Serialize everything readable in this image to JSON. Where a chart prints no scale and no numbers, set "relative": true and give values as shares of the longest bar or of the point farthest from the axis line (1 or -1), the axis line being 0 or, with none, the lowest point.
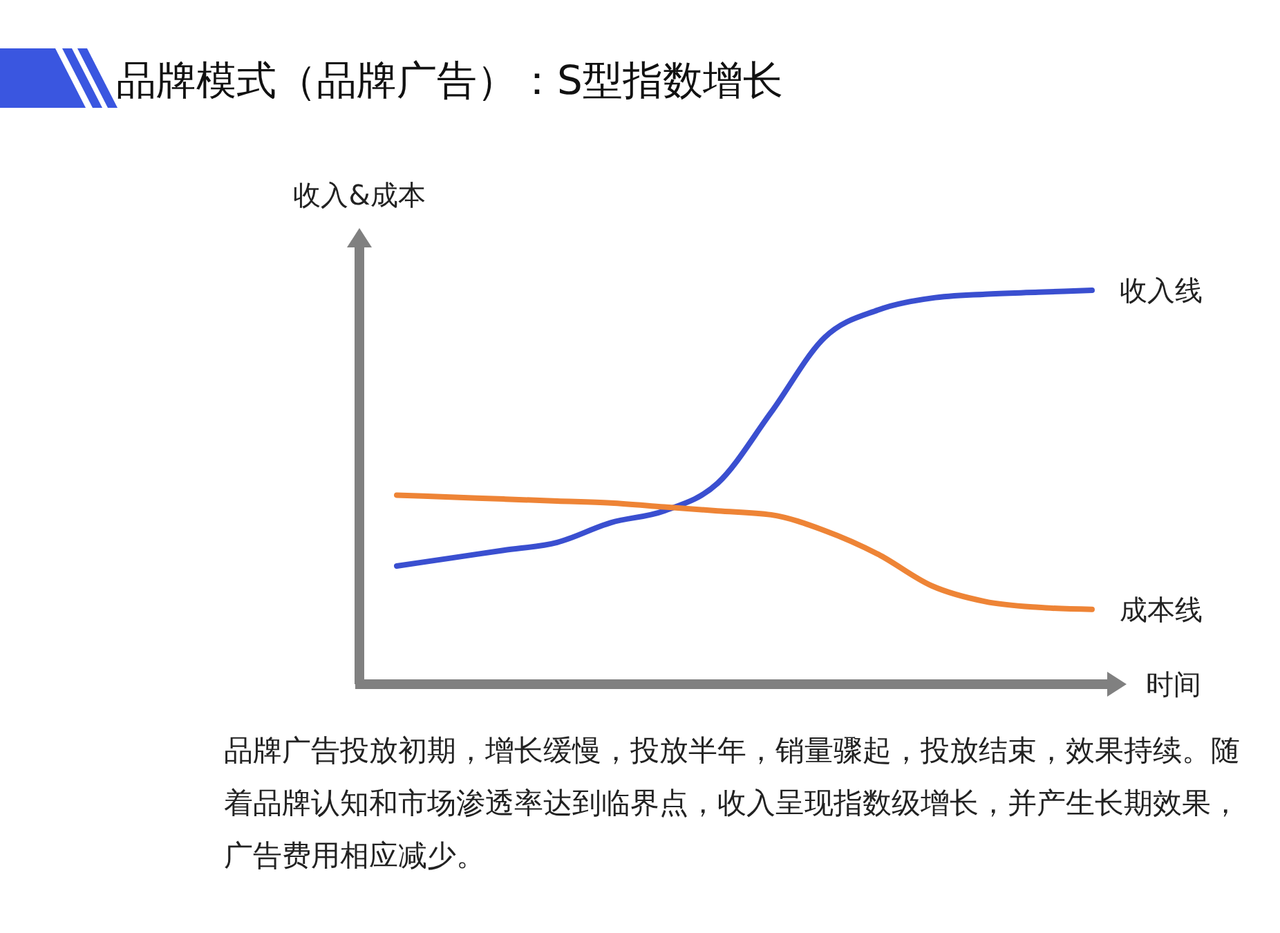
{
  "chart_data": {
    "type": "line",
    "title": "品牌模式（品牌广告）：S型指数增长",
    "xlabel": "时间",
    "ylabel": "收入&成本",
    "relative": true,
    "marker": "none",
    "line_style": "solid",
    "categories": [
      null,
      null,
      null,
      null,
      null,
      null,
      null,
      null,
      null,
      null,
      null,
      null,
      null,
      null
    ],
    "series": [
      {
        "name": "收入线",
        "color": "#3a4fd0",
        "values": [
          0.3,
          0.32,
          0.34,
          0.36,
          0.41,
          0.44,
          0.51,
          0.69,
          0.88,
          0.95,
          0.98,
          0.99,
          0.995,
          1
        ]
      },
      {
        "name": "成本线",
        "color": "#ee8436",
        "values": [
          0.48,
          0.475,
          0.47,
          0.465,
          0.46,
          0.45,
          0.44,
          0.43,
          0.39,
          0.33,
          0.25,
          0.21,
          0.195,
          0.19
        ]
      }
    ],
    "annotations": [
      "品牌广告投放初期，增长缓慢，投放半年，销量骤起，投放结束，效果持续。随着品牌认知和市场渗透率达到临界点，收入呈现指数级增长，并产生长期效果，广告费用相应减少。"
    ]
  }
}
